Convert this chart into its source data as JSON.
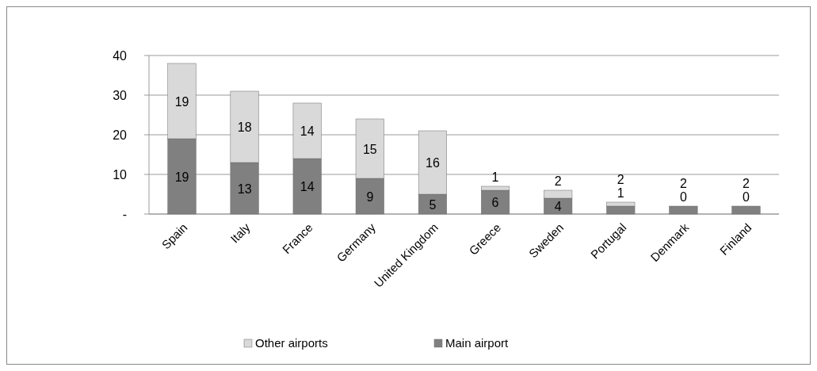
{
  "chart_data": {
    "type": "bar",
    "stacked": true,
    "categories": [
      "Spain",
      "Italy",
      "France",
      "Germany",
      "United Kingdom",
      "Greece",
      "Sweden",
      "Portugal",
      "Denmark",
      "Finland"
    ],
    "series": [
      {
        "name": "Main airport",
        "color": "#808080",
        "values": [
          19,
          13,
          14,
          9,
          5,
          6,
          4,
          2,
          2,
          2
        ]
      },
      {
        "name": "Other airports",
        "color": "#d9d9d9",
        "values": [
          19,
          18,
          14,
          15,
          16,
          1,
          2,
          1,
          0,
          0
        ]
      }
    ],
    "ylim": [
      0,
      40
    ],
    "yticks": [
      {
        "value": 0,
        "label": "-"
      },
      10,
      20,
      30,
      40
    ],
    "grid": "y",
    "legend": "bottom",
    "data_labels": true
  }
}
